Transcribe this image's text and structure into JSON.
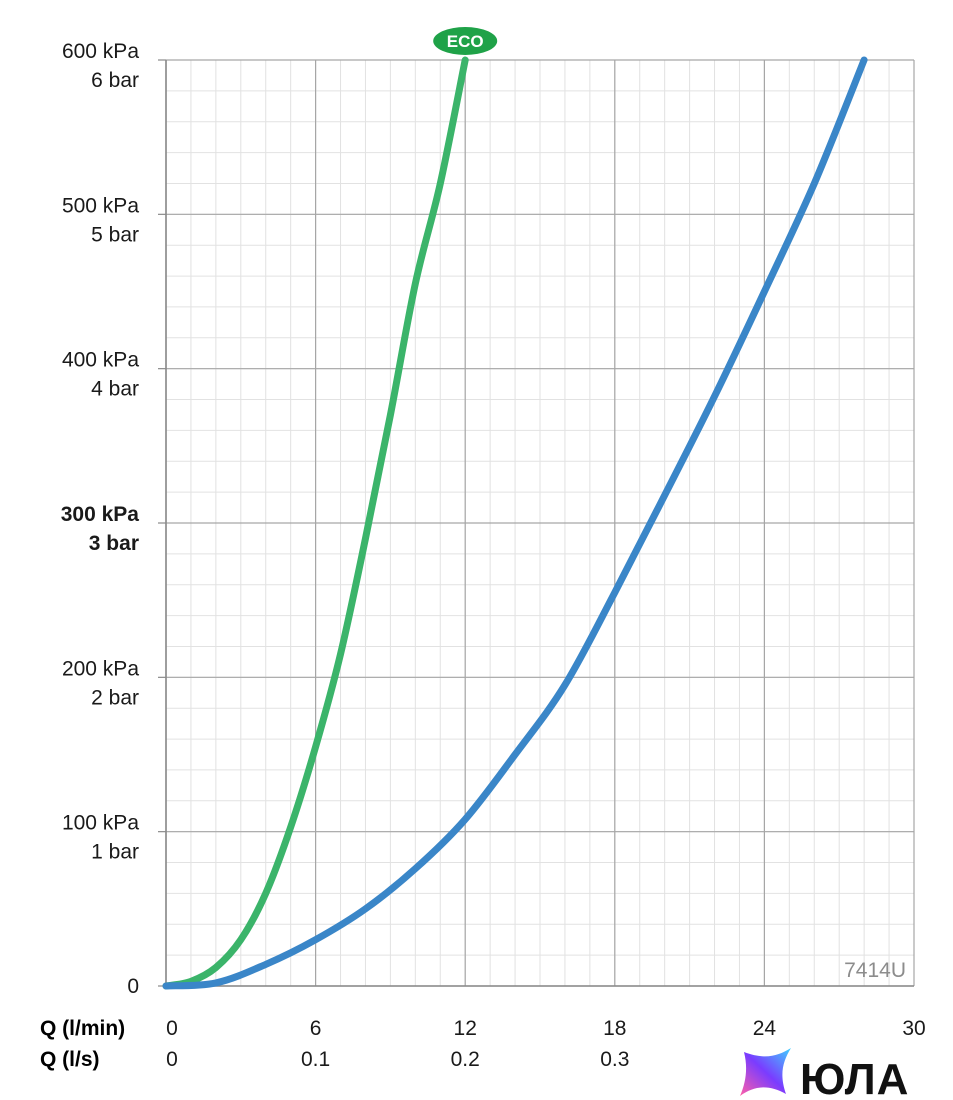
{
  "chart_data": {
    "type": "line",
    "title": "",
    "xlabel": "Q (l/min)",
    "xlabel_secondary": "Q (l/s)",
    "ylabel": "",
    "xlim": [
      0,
      30
    ],
    "ylim": [
      0,
      600
    ],
    "grid": true,
    "x_ticks": [
      {
        "value": 0,
        "label": "0",
        "label_secondary": "0"
      },
      {
        "value": 6,
        "label": "6",
        "label_secondary": "0.1"
      },
      {
        "value": 12,
        "label": "12",
        "label_secondary": "0.2"
      },
      {
        "value": 18,
        "label": "18",
        "label_secondary": "0.3"
      },
      {
        "value": 24,
        "label": "24",
        "label_secondary": ""
      },
      {
        "value": 30,
        "label": "30",
        "label_secondary": ""
      }
    ],
    "y_ticks": [
      {
        "value": 0,
        "label": "0",
        "label_secondary": "",
        "bold": false
      },
      {
        "value": 100,
        "label": "100 kPa",
        "label_secondary": "1 bar",
        "bold": false
      },
      {
        "value": 200,
        "label": "200 kPa",
        "label_secondary": "2 bar",
        "bold": false
      },
      {
        "value": 300,
        "label": "300 kPa",
        "label_secondary": "3 bar",
        "bold": true
      },
      {
        "value": 400,
        "label": "400 kPa",
        "label_secondary": "4 bar",
        "bold": false
      },
      {
        "value": 500,
        "label": "500 kPa",
        "label_secondary": "5 bar",
        "bold": false
      },
      {
        "value": 600,
        "label": "600 kPa",
        "label_secondary": "6 bar",
        "bold": false
      }
    ],
    "series": [
      {
        "color": "#3bb46a",
        "x": [
          0,
          1,
          2,
          3,
          4,
          5,
          6,
          7,
          8,
          9,
          10,
          11,
          12
        ],
        "y": [
          0,
          3,
          12,
          30,
          60,
          103,
          155,
          215,
          290,
          370,
          455,
          520,
          600
        ]
      },
      {
        "color": "#3a86c8",
        "x": [
          0,
          2,
          4,
          6,
          8,
          10,
          12,
          14,
          16,
          18,
          20,
          22,
          24,
          26,
          28
        ],
        "y": [
          0,
          2,
          14,
          30,
          50,
          76,
          108,
          150,
          195,
          255,
          318,
          382,
          450,
          520,
          600
        ]
      }
    ],
    "annotations": [
      {
        "text": "ECO",
        "x": 12,
        "y": 600,
        "style": "badge",
        "color": "#1fa248"
      },
      {
        "text": "7414U",
        "position": "bottom-right",
        "color": "#8c8c8c"
      }
    ]
  },
  "logo": {
    "text": "ЮЛА",
    "icon": "star-icon",
    "colors": [
      "#ff5fa8",
      "#7a3cff",
      "#3fd0ff"
    ]
  }
}
